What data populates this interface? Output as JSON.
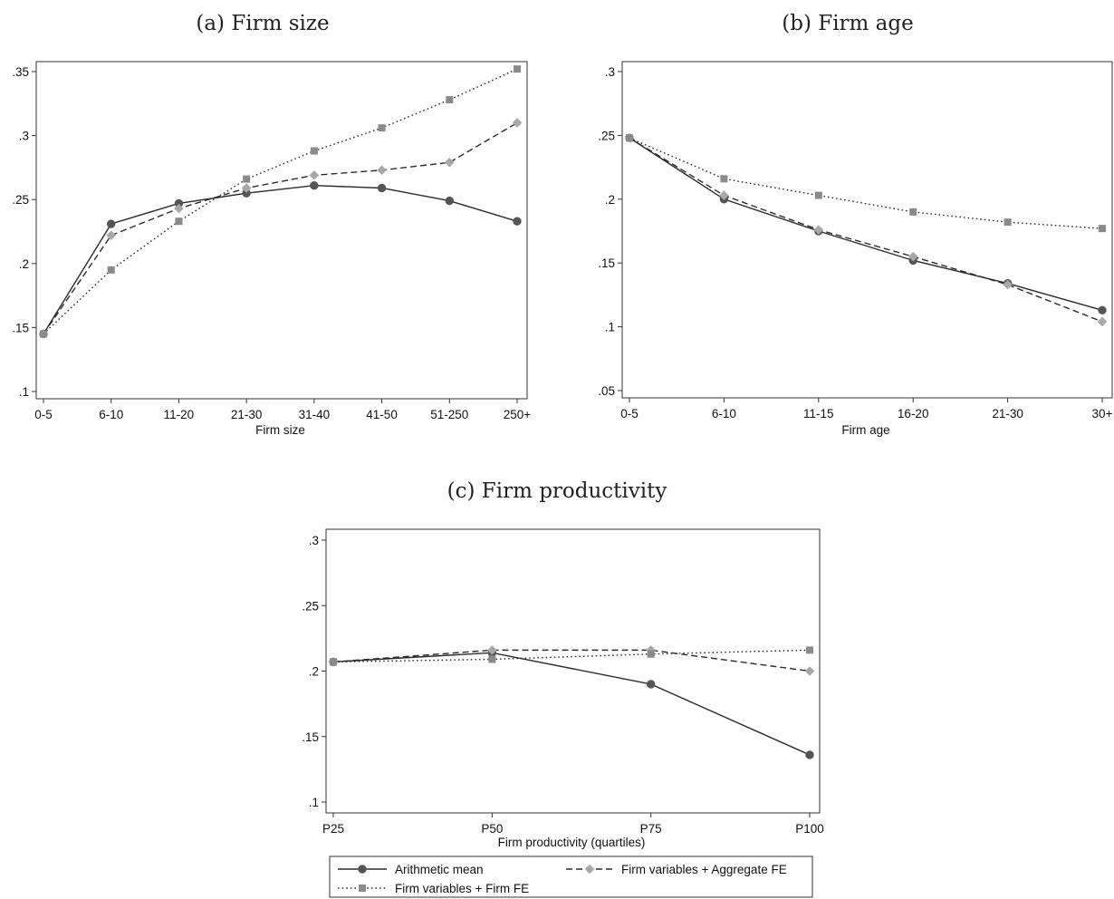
{
  "chart_data": [
    {
      "type": "line",
      "title": "(a) Firm size",
      "xlabel": "Firm size",
      "ylabel": "",
      "categories": [
        "0-5",
        "6-10",
        "11-20",
        "21-30",
        "31-40",
        "41-50",
        "51-250",
        "250+"
      ],
      "ylim": [
        0.1,
        0.35
      ],
      "yticks": [
        0.1,
        0.15,
        0.2,
        0.25,
        0.3,
        0.35
      ],
      "ytick_labels": [
        ".1",
        ".15",
        ".2",
        ".25",
        ".3",
        ".35"
      ],
      "grid": false,
      "series": [
        {
          "name": "Arithmetic mean",
          "values": [
            0.145,
            0.231,
            0.247,
            0.255,
            0.261,
            0.259,
            0.249,
            0.233
          ]
        },
        {
          "name": "Firm variables + Firm FE",
          "values": [
            0.145,
            0.195,
            0.233,
            0.266,
            0.288,
            0.306,
            0.328,
            0.352
          ]
        },
        {
          "name": "Firm variables + Aggregate FE",
          "values": [
            0.145,
            0.222,
            0.243,
            0.259,
            0.269,
            0.273,
            0.279,
            0.31
          ]
        }
      ]
    },
    {
      "type": "line",
      "title": "(b) Firm age",
      "xlabel": "Firm age",
      "ylabel": "",
      "categories": [
        "0-5",
        "6-10",
        "11-15",
        "16-20",
        "21-30",
        "30+"
      ],
      "ylim": [
        0.05,
        0.3
      ],
      "yticks": [
        0.05,
        0.1,
        0.15,
        0.2,
        0.25,
        0.3
      ],
      "ytick_labels": [
        ".05",
        ".1",
        ".15",
        ".2",
        ".25",
        ".3"
      ],
      "grid": false,
      "series": [
        {
          "name": "Arithmetic mean",
          "values": [
            0.248,
            0.2,
            0.175,
            0.152,
            0.134,
            0.113
          ]
        },
        {
          "name": "Firm variables + Firm FE",
          "values": [
            0.248,
            0.216,
            0.203,
            0.19,
            0.182,
            0.177
          ]
        },
        {
          "name": "Firm variables + Aggregate FE",
          "values": [
            0.248,
            0.203,
            0.176,
            0.155,
            0.133,
            0.104
          ]
        }
      ]
    },
    {
      "type": "line",
      "title": "(c) Firm productivity",
      "xlabel": "Firm productivity (quartiles)",
      "ylabel": "",
      "categories": [
        "P25",
        "P50",
        "P75",
        "P100"
      ],
      "ylim": [
        0.1,
        0.3
      ],
      "yticks": [
        0.1,
        0.15,
        0.2,
        0.25,
        0.3
      ],
      "ytick_labels": [
        ".1",
        ".15",
        ".2",
        ".25",
        ".3"
      ],
      "grid": false,
      "series": [
        {
          "name": "Arithmetic mean",
          "values": [
            0.207,
            0.214,
            0.19,
            0.136
          ]
        },
        {
          "name": "Firm variables + Firm FE",
          "values": [
            0.207,
            0.209,
            0.213,
            0.216
          ]
        },
        {
          "name": "Firm variables + Aggregate FE",
          "values": [
            0.207,
            0.216,
            0.216,
            0.2
          ]
        }
      ]
    }
  ],
  "legend": {
    "placement": "bottom",
    "entries": [
      {
        "label": "Arithmetic mean",
        "line_style": "solid",
        "marker": "circle"
      },
      {
        "label": "Firm variables + Aggregate FE",
        "line_style": "dashed",
        "marker": "diamond"
      },
      {
        "label": "Firm variables + Firm FE",
        "line_style": "dotted",
        "marker": "square"
      }
    ]
  },
  "series_styles": {
    "Arithmetic mean": {
      "line_color": "#2b2b2b",
      "marker_color": "#555555",
      "dash": "solid",
      "marker": "circle"
    },
    "Firm variables + Firm FE": {
      "line_color": "#2b2b2b",
      "marker_color": "#8a8a8a",
      "dash": "dotted",
      "marker": "square"
    },
    "Firm variables + Aggregate FE": {
      "line_color": "#2b2b2b",
      "marker_color": "#a8a8a8",
      "dash": "dashed",
      "marker": "diamond"
    }
  }
}
